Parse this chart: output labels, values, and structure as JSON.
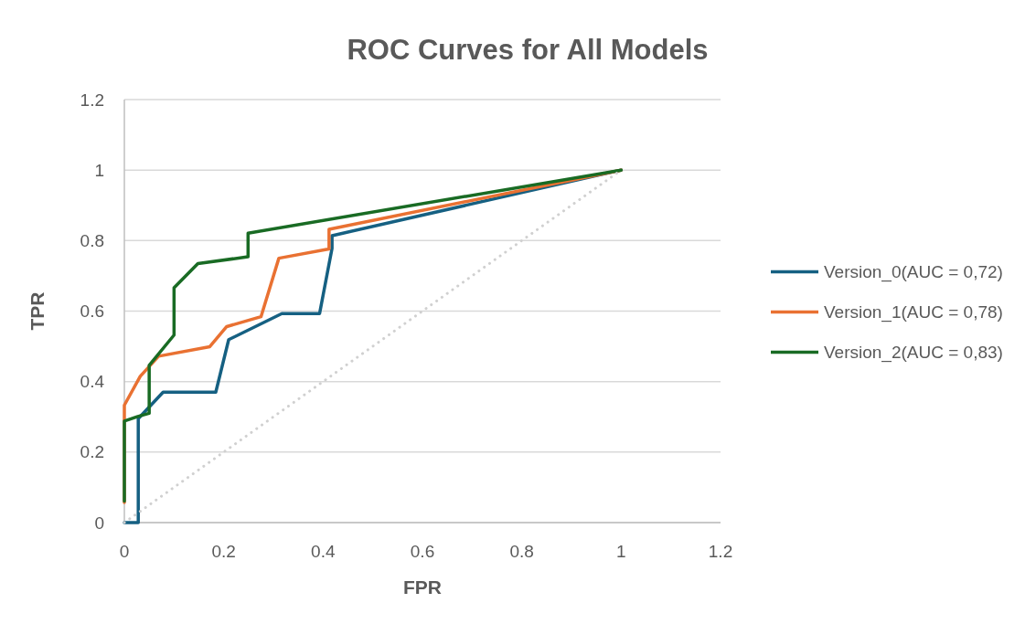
{
  "chart_data": {
    "type": "line",
    "title": "ROC Curves for All Models",
    "xlabel": "FPR",
    "ylabel": "TPR",
    "xlim": [
      0,
      1.2
    ],
    "xticks": [
      0,
      0.2,
      0.4,
      0.6,
      0.8,
      1,
      1.2
    ],
    "ylim": [
      0,
      1.2
    ],
    "yticks": [
      0,
      0.2,
      0.4,
      0.6,
      0.8,
      1,
      1.2
    ],
    "grid": "y",
    "legend": "right",
    "marker": "none",
    "line_style": "solid",
    "series": [
      {
        "name": "Version_0(AUC = 0,72)",
        "color": "#156082",
        "x": [
          0,
          0.028,
          0.028,
          0.078,
          0.184,
          0.21,
          0.317,
          0.393,
          0.418,
          0.418,
          1
        ],
        "values": [
          0,
          0,
          0.295,
          0.37,
          0.37,
          0.519,
          0.593,
          0.593,
          0.778,
          0.814,
          1
        ]
      },
      {
        "name": "Version_1(AUC = 0,78)",
        "color": "#e97132",
        "x": [
          0,
          0,
          0.032,
          0.069,
          0.172,
          0.206,
          0.275,
          0.311,
          0.412,
          0.412,
          1
        ],
        "values": [
          0.057,
          0.333,
          0.415,
          0.472,
          0.499,
          0.556,
          0.584,
          0.75,
          0.776,
          0.832,
          1
        ]
      },
      {
        "name": "Version_2(AUC = 0,83)",
        "color": "#196b24",
        "x": [
          0,
          0,
          0.027,
          0.05,
          0.05,
          0.1,
          0.1,
          0.148,
          0.249,
          0.249,
          1
        ],
        "values": [
          0.061,
          0.288,
          0.301,
          0.31,
          0.446,
          0.532,
          0.666,
          0.735,
          0.754,
          0.821,
          1
        ]
      },
      {
        "color": "#d0d0d0",
        "line_style": "dotted",
        "x": [
          0,
          1
        ],
        "values": [
          0,
          1
        ]
      }
    ]
  }
}
